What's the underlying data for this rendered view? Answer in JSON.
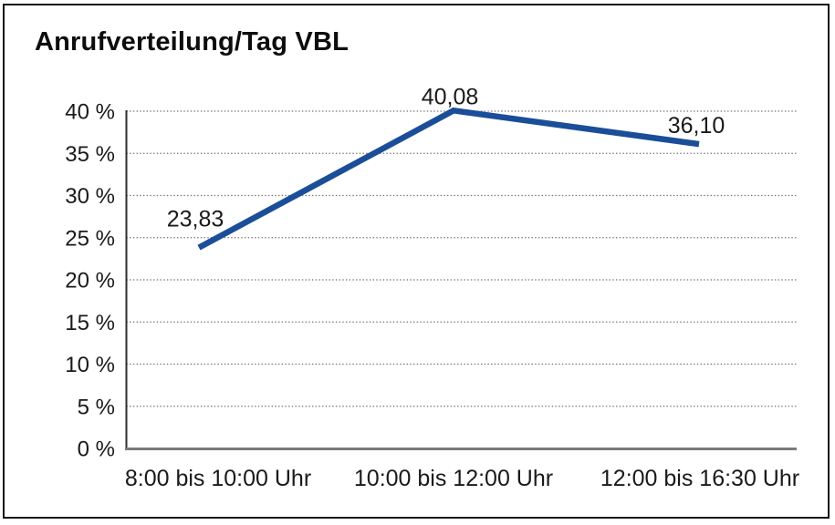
{
  "chart_data": {
    "type": "line",
    "title": "Anrufverteilung/Tag VBL",
    "categories": [
      "8:00 bis 10:00 Uhr",
      "10:00 bis 12:00 Uhr",
      "12:00 bis 16:30 Uhr"
    ],
    "values": [
      23.83,
      40.08,
      36.1
    ],
    "point_labels": [
      "23,83",
      "40,08",
      "36,10"
    ],
    "xlabel": "",
    "ylabel": "",
    "ylim": [
      0,
      40
    ],
    "ytick_step": 5,
    "ytick_labels": [
      "0 %",
      "5 %",
      "10 %",
      "15 %",
      "20 %",
      "25 %",
      "30 %",
      "35 %",
      "40 %"
    ],
    "grid": "horizontal-dotted",
    "legend": "none",
    "colors": {
      "line": "#1B4E98",
      "grid": "#707070",
      "y_axis": "#2e2e2e",
      "x_axis": "#7a7a7a",
      "text": "#1a1a1a",
      "background": "#ffffff",
      "border": "#161616"
    }
  }
}
